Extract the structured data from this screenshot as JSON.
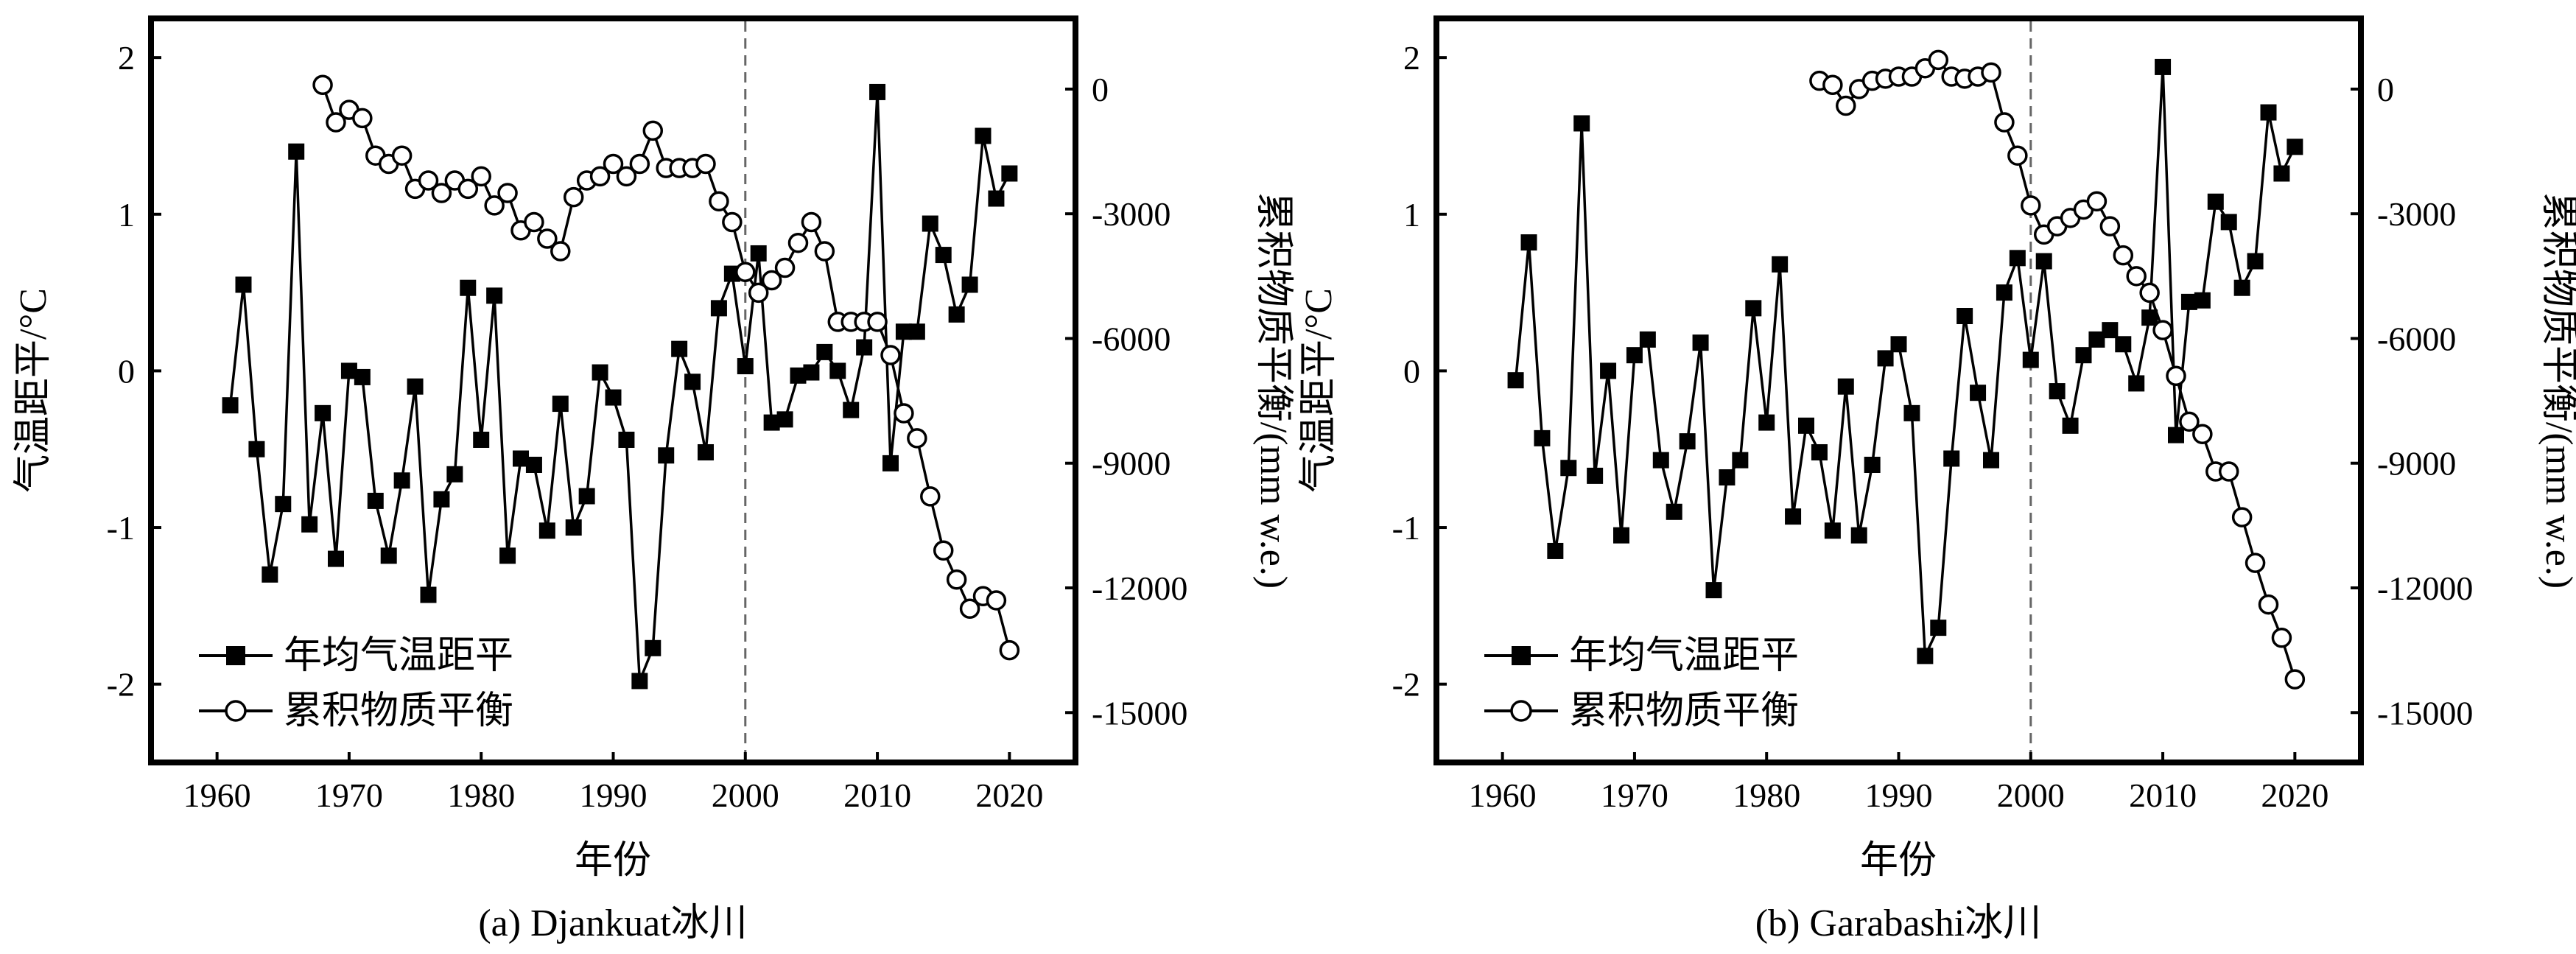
{
  "chart_data": [
    {
      "type": "line",
      "caption": "(a) Djankuat冰川",
      "xlabel": "年份",
      "ylabel_left": "气温距平/°C",
      "ylabel_right": "累积物质平衡/(mm w.e.)",
      "xlim": [
        1955,
        2025
      ],
      "ylim_left": [
        -2.5,
        2.25
      ],
      "ylim_right": [
        -16200,
        1700
      ],
      "xticks": [
        1960,
        1970,
        1980,
        1990,
        2000,
        2010,
        2020
      ],
      "yticks_left": [
        -2,
        -1,
        0,
        1,
        2
      ],
      "yticks_right": [
        -15000,
        -12000,
        -9000,
        -6000,
        -3000,
        0
      ],
      "xtick_labels": [
        "1960",
        "1970",
        "1980",
        "1990",
        "2000",
        "2010",
        "2020"
      ],
      "ytick_labels_left": [
        "-2",
        "-1",
        "0",
        "1",
        "2"
      ],
      "ytick_labels_right": [
        "-15000",
        "-12000",
        "-9000",
        "-6000",
        "-3000",
        "0"
      ],
      "reference_line_x": 2000,
      "grid": false,
      "legend_position": "bottom-left",
      "series": [
        {
          "name": "年均气温距平",
          "axis": "left",
          "marker": "filled-square",
          "x": [
            1961,
            1962,
            1963,
            1964,
            1965,
            1966,
            1967,
            1968,
            1969,
            1970,
            1971,
            1972,
            1973,
            1974,
            1975,
            1976,
            1977,
            1978,
            1979,
            1980,
            1981,
            1982,
            1983,
            1984,
            1985,
            1986,
            1987,
            1988,
            1989,
            1990,
            1991,
            1992,
            1993,
            1994,
            1995,
            1996,
            1997,
            1998,
            1999,
            2000,
            2001,
            2002,
            2003,
            2004,
            2005,
            2006,
            2007,
            2008,
            2009,
            2010,
            2011,
            2012,
            2013,
            2014,
            2015,
            2016,
            2017,
            2018,
            2019,
            2020
          ],
          "y": [
            -0.22,
            0.55,
            -0.5,
            -1.3,
            -0.85,
            1.4,
            -0.98,
            -0.27,
            -1.2,
            0,
            -0.04,
            -0.83,
            -1.18,
            -0.7,
            -0.1,
            -1.43,
            -0.82,
            -0.66,
            0.53,
            -0.44,
            0.48,
            -1.18,
            -0.56,
            -0.6,
            -1.02,
            -0.21,
            -1.0,
            -0.8,
            -0.01,
            -0.17,
            -0.44,
            -1.98,
            -1.77,
            -0.54,
            0.14,
            -0.07,
            -0.52,
            0.4,
            0.62,
            0.03,
            0.75,
            -0.33,
            -0.31,
            -0.03,
            -0.01,
            0.12,
            0.0,
            -0.25,
            0.15,
            1.78,
            -0.59,
            0.25,
            0.25,
            0.94,
            0.74,
            0.36,
            0.55,
            1.5,
            1.1,
            1.26
          ]
        },
        {
          "name": "累积物质平衡",
          "axis": "right",
          "marker": "open-circle",
          "x": [
            1968,
            1969,
            1970,
            1971,
            1972,
            1973,
            1974,
            1975,
            1976,
            1977,
            1978,
            1979,
            1980,
            1981,
            1982,
            1983,
            1984,
            1985,
            1986,
            1987,
            1988,
            1989,
            1990,
            1991,
            1992,
            1993,
            1994,
            1995,
            1996,
            1997,
            1998,
            1999,
            2000,
            2001,
            2002,
            2003,
            2004,
            2005,
            2006,
            2007,
            2008,
            2009,
            2010,
            2011,
            2012,
            2013,
            2014,
            2015,
            2016,
            2017,
            2018,
            2019,
            2020
          ],
          "y": [
            100,
            -800,
            -500,
            -700,
            -1600,
            -1800,
            -1600,
            -2400,
            -2200,
            -2500,
            -2200,
            -2400,
            -2100,
            -2800,
            -2500,
            -3400,
            -3200,
            -3600,
            -3900,
            -2600,
            -2200,
            -2100,
            -1800,
            -2100,
            -1800,
            -1000,
            -1900,
            -1900,
            -1900,
            -1800,
            -2700,
            -3200,
            -4400,
            -4900,
            -4600,
            -4300,
            -3700,
            -3200,
            -3900,
            -5600,
            -5600,
            -5600,
            -5600,
            -6400,
            -7800,
            -8400,
            -9800,
            -11100,
            -11800,
            -12500,
            -12200,
            -12300,
            -13500
          ]
        }
      ]
    },
    {
      "type": "line",
      "caption": "(b) Garabashi冰川",
      "xlabel": "年份",
      "ylabel_left": "气温距平/°C",
      "ylabel_right": "累积物质平衡/(mm w.e.)",
      "xlim": [
        1955,
        2025
      ],
      "ylim_left": [
        -2.5,
        2.25
      ],
      "ylim_right": [
        -16200,
        1700
      ],
      "xticks": [
        1960,
        1970,
        1980,
        1990,
        2000,
        2010,
        2020
      ],
      "yticks_left": [
        -2,
        -1,
        0,
        1,
        2
      ],
      "yticks_right": [
        -15000,
        -12000,
        -9000,
        -6000,
        -3000,
        0
      ],
      "xtick_labels": [
        "1960",
        "1970",
        "1980",
        "1990",
        "2000",
        "2010",
        "2020"
      ],
      "ytick_labels_left": [
        "-2",
        "-1",
        "0",
        "1",
        "2"
      ],
      "ytick_labels_right": [
        "-15000",
        "-12000",
        "-9000",
        "-6000",
        "-3000",
        "0"
      ],
      "reference_line_x": 2000,
      "grid": false,
      "legend_position": "bottom-left",
      "series": [
        {
          "name": "年均气温距平",
          "axis": "left",
          "marker": "filled-square",
          "x": [
            1961,
            1962,
            1963,
            1964,
            1965,
            1966,
            1967,
            1968,
            1969,
            1970,
            1971,
            1972,
            1973,
            1974,
            1975,
            1976,
            1977,
            1978,
            1979,
            1980,
            1981,
            1982,
            1983,
            1984,
            1985,
            1986,
            1987,
            1988,
            1989,
            1990,
            1991,
            1992,
            1993,
            1994,
            1995,
            1996,
            1997,
            1998,
            1999,
            2000,
            2001,
            2002,
            2003,
            2004,
            2005,
            2006,
            2007,
            2008,
            2009,
            2010,
            2011,
            2012,
            2013,
            2014,
            2015,
            2016,
            2017,
            2018,
            2019,
            2020
          ],
          "y": [
            -0.06,
            0.82,
            -0.43,
            -1.15,
            -0.62,
            1.58,
            -0.67,
            0.0,
            -1.05,
            0.1,
            0.2,
            -0.57,
            -0.9,
            -0.45,
            0.18,
            -1.4,
            -0.68,
            -0.57,
            0.4,
            -0.33,
            0.68,
            -0.93,
            -0.35,
            -0.52,
            -1.02,
            -0.1,
            -1.05,
            -0.6,
            0.08,
            0.17,
            -0.27,
            -1.82,
            -1.64,
            -0.56,
            0.35,
            -0.14,
            -0.57,
            0.5,
            0.72,
            0.07,
            0.7,
            -0.13,
            -0.35,
            0.1,
            0.2,
            0.26,
            0.17,
            -0.08,
            0.34,
            1.94,
            -0.41,
            0.44,
            0.45,
            1.08,
            0.95,
            0.53,
            0.7,
            1.65,
            1.26,
            1.43
          ]
        },
        {
          "name": "累积物质平衡",
          "axis": "right",
          "marker": "open-circle",
          "x": [
            1984,
            1985,
            1986,
            1987,
            1988,
            1989,
            1990,
            1991,
            1992,
            1993,
            1994,
            1995,
            1996,
            1997,
            1998,
            1999,
            2000,
            2001,
            2002,
            2003,
            2004,
            2005,
            2006,
            2007,
            2008,
            2009,
            2010,
            2011,
            2012,
            2013,
            2014,
            2015,
            2016,
            2017,
            2018,
            2019,
            2020
          ],
          "y": [
            200,
            100,
            -400,
            0,
            200,
            250,
            300,
            300,
            500,
            700,
            300,
            250,
            300,
            400,
            -800,
            -1600,
            -2800,
            -3500,
            -3300,
            -3100,
            -2900,
            -2700,
            -3300,
            -4000,
            -4500,
            -4900,
            -5800,
            -6900,
            -8000,
            -8300,
            -9200,
            -9200,
            -10300,
            -11400,
            -12400,
            -13200,
            -14200
          ]
        }
      ]
    }
  ]
}
